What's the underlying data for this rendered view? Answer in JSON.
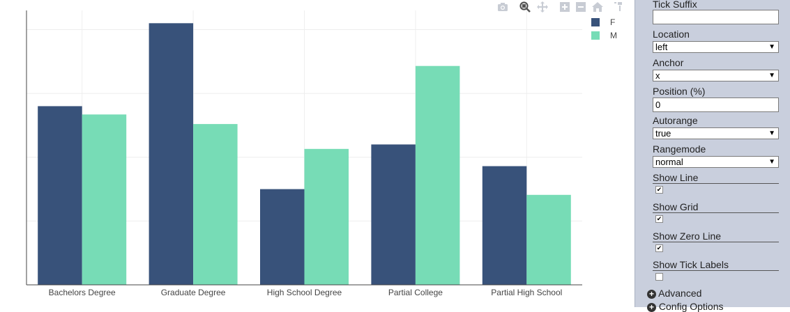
{
  "chart_data": {
    "type": "bar",
    "categories": [
      "Bachelors Degree",
      "Graduate Degree",
      "High School Degree",
      "Partial College",
      "Partial High School"
    ],
    "series": [
      {
        "name": "F",
        "color": "#38527a",
        "values": [
          28.0,
          41.0,
          15.0,
          22.0,
          18.6
        ]
      },
      {
        "name": "M",
        "color": "#77dcb6",
        "values": [
          26.7,
          25.2,
          21.3,
          34.3,
          14.1
        ]
      }
    ],
    "ylim": [
      0,
      43
    ],
    "grid": true,
    "legend_position": "top-right",
    "title": "",
    "xlabel": "",
    "ylabel": ""
  },
  "legend": {
    "items": [
      {
        "label": "F"
      },
      {
        "label": "M"
      }
    ]
  },
  "modebar": {
    "icons": [
      "camera-icon",
      "zoom-icon",
      "pan-icon",
      "zoom-in-icon",
      "zoom-out-icon",
      "home-icon",
      "hover-icon"
    ]
  },
  "panel": {
    "tick_suffix": {
      "label": "Tick Suffix",
      "value": ""
    },
    "location": {
      "label": "Location",
      "value": "left"
    },
    "anchor": {
      "label": "Anchor",
      "value": "x"
    },
    "position": {
      "label": "Position (%)",
      "value": "0"
    },
    "autorange": {
      "label": "Autorange",
      "value": "true"
    },
    "rangemode": {
      "label": "Rangemode",
      "value": "normal"
    },
    "show_line": {
      "label": "Show Line",
      "checked": true
    },
    "show_grid": {
      "label": "Show Grid",
      "checked": true
    },
    "show_zero_line": {
      "label": "Show Zero Line",
      "checked": true
    },
    "show_tick_labels": {
      "label": "Show Tick Labels",
      "checked": false
    },
    "advanced": {
      "label": "Advanced"
    },
    "config_options": {
      "label": "Config Options"
    }
  }
}
